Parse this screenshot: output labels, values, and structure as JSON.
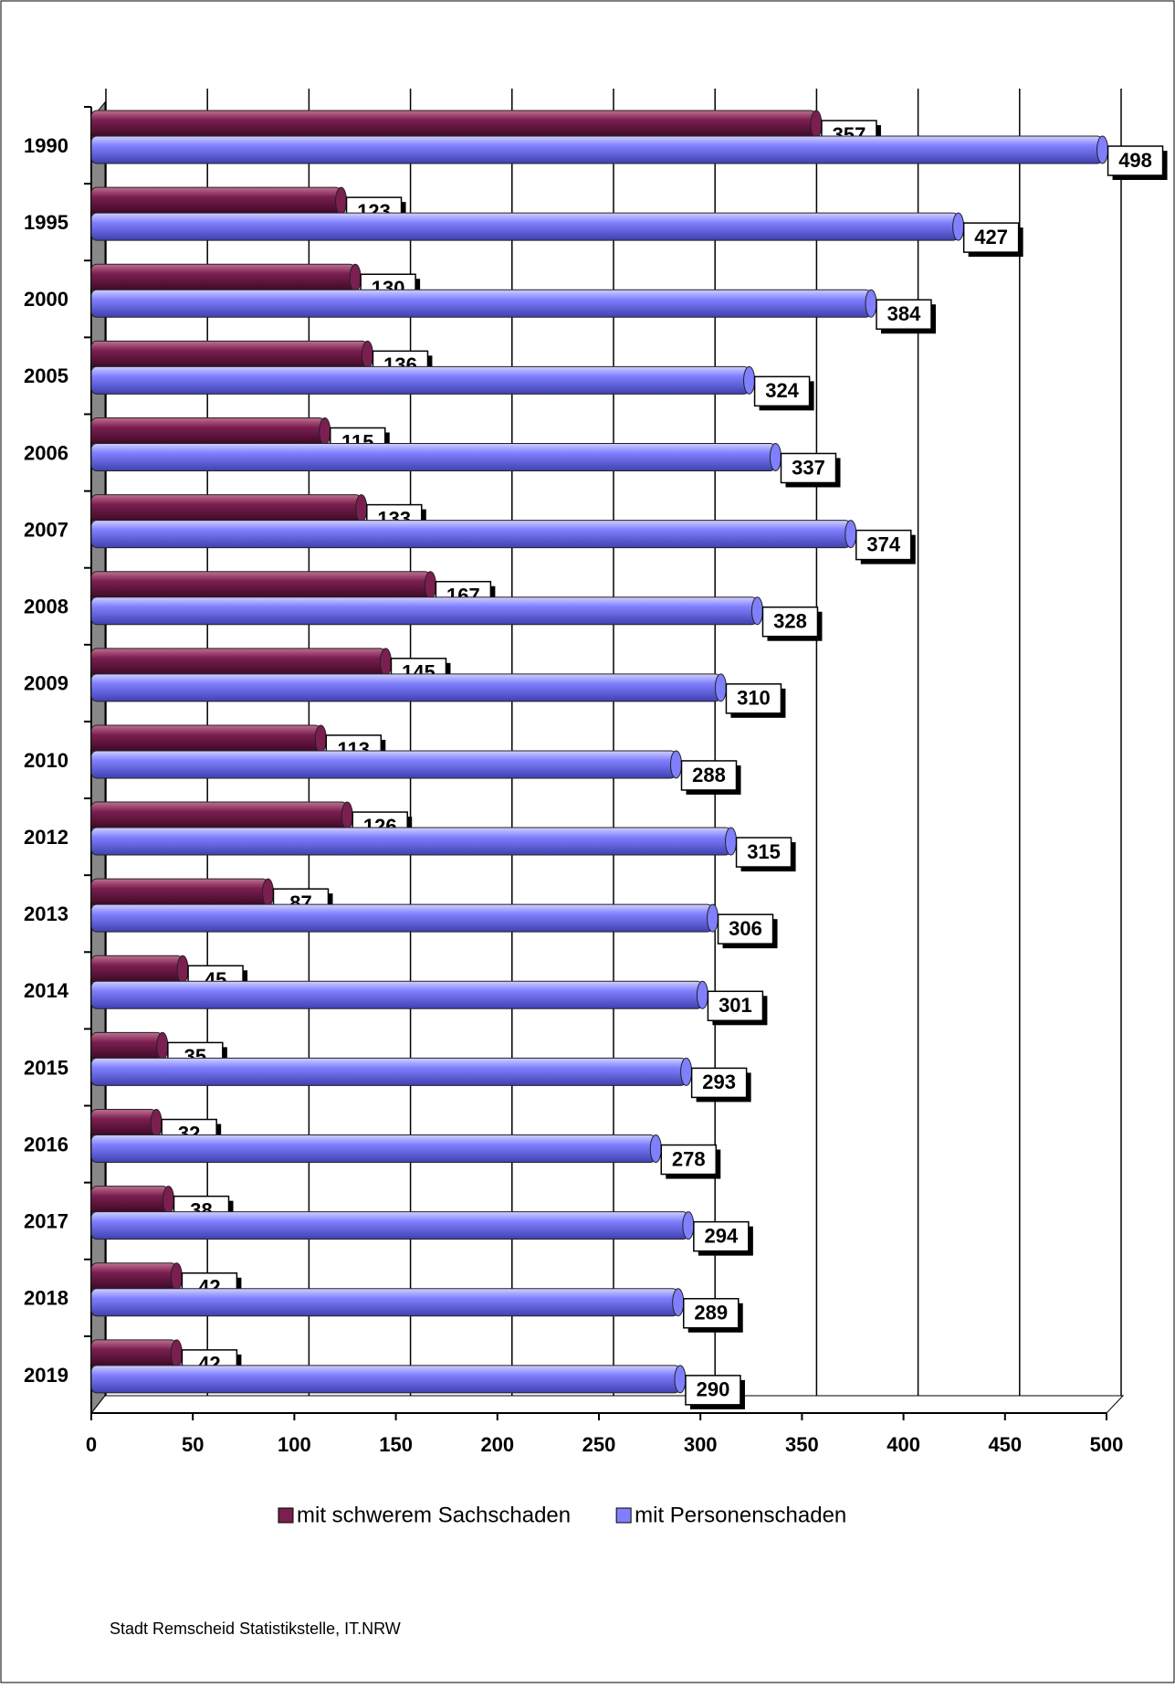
{
  "chart_data": {
    "type": "bar",
    "orientation": "horizontal",
    "categories": [
      "1990",
      "1995",
      "2000",
      "2005",
      "2006",
      "2007",
      "2008",
      "2009",
      "2010",
      "2012",
      "2013",
      "2014",
      "2015",
      "2016",
      "2017",
      "2018",
      "2019"
    ],
    "series": [
      {
        "name": "mit schwerem Sachschaden",
        "color": "#7a1f50",
        "values": [
          357,
          123,
          130,
          136,
          115,
          133,
          167,
          145,
          113,
          126,
          87,
          45,
          35,
          32,
          38,
          42,
          42
        ]
      },
      {
        "name": "mit Personenschaden",
        "color": "#8080ff",
        "values": [
          498,
          427,
          384,
          324,
          337,
          374,
          328,
          310,
          288,
          315,
          306,
          301,
          293,
          278,
          294,
          289,
          290
        ]
      }
    ],
    "xlim": [
      0,
      500
    ],
    "xticks": [
      0,
      50,
      100,
      150,
      200,
      250,
      300,
      350,
      400,
      450,
      500
    ],
    "grid": true,
    "legend": "bottom",
    "source": "Stadt Remscheid Statistikstelle, IT.NRW"
  }
}
